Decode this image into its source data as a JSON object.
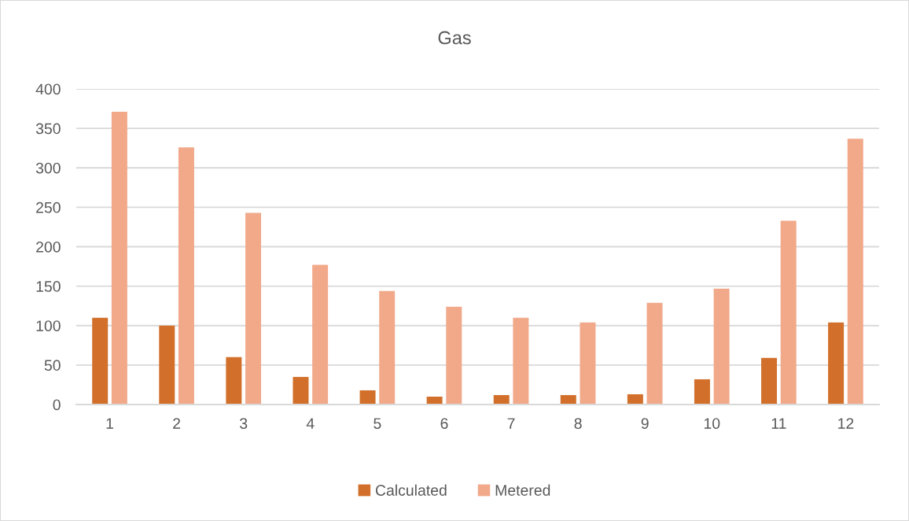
{
  "chart_data": {
    "type": "bar",
    "title": "Gas",
    "categories": [
      "1",
      "2",
      "3",
      "4",
      "5",
      "6",
      "7",
      "8",
      "9",
      "10",
      "11",
      "12"
    ],
    "series": [
      {
        "name": "Calculated",
        "color": "#d2702b",
        "values": [
          110,
          100,
          60,
          35,
          18,
          10,
          12,
          12,
          13,
          32,
          59,
          104
        ]
      },
      {
        "name": "Metered",
        "color": "#f1a98a",
        "values": [
          371,
          326,
          243,
          177,
          144,
          124,
          110,
          104,
          129,
          147,
          233,
          337
        ]
      }
    ],
    "ylim": [
      0,
      400
    ],
    "yticks": [
      0,
      50,
      100,
      150,
      200,
      250,
      300,
      350,
      400
    ],
    "grid": "y",
    "legend": "bottom"
  }
}
